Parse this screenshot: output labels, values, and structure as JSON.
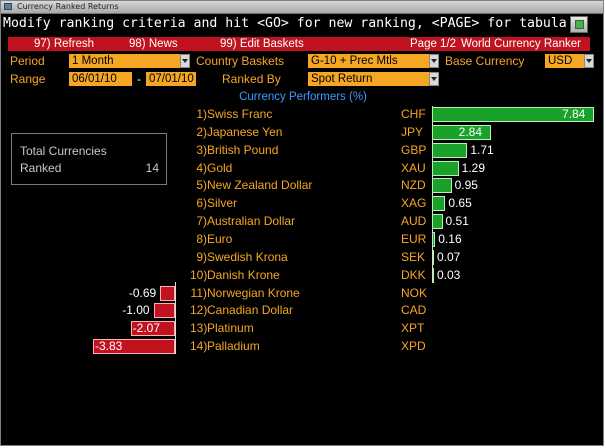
{
  "window": {
    "title": "Currency Ranked Returns"
  },
  "command_line": "Modify ranking criteria and hit <GO> for new ranking, <PAGE> for tabular data",
  "menu": {
    "refresh": "97) Refresh",
    "news": "98) News",
    "edit_baskets": "99) Edit Baskets",
    "page": "Page 1/2",
    "title": "World Currency Ranker"
  },
  "controls": {
    "period_label": "Period",
    "period_value": "1 Month",
    "country_baskets_label": "Country Baskets",
    "country_baskets_value": "G-10 + Prec Mtls",
    "base_currency_label": "Base Currency",
    "base_currency_value": "USD",
    "range_label": "Range",
    "range_start": "06/01/10",
    "range_sep": "-",
    "range_end": "07/01/10",
    "ranked_by_label": "Ranked By",
    "ranked_by_value": "Spot Return"
  },
  "section_title": "Currency Performers (%)",
  "summary": {
    "line1": "Total Currencies",
    "line2": "Ranked",
    "count": "14"
  },
  "colors": {
    "positive": "#1aa12a",
    "negative": "#c1121f",
    "label": "#f5a623",
    "title": "#3a9cff"
  },
  "chart_data": {
    "type": "bar",
    "orientation": "horizontal",
    "title": "Currency Performers (%)",
    "categories": [
      "Swiss Franc",
      "Japanese Yen",
      "British Pound",
      "Gold",
      "New Zealand Dollar",
      "Silver",
      "Australian Dollar",
      "Euro",
      "Swedish Krona",
      "Danish Krone",
      "Norwegian Krone",
      "Canadian Dollar",
      "Platinum",
      "Palladium"
    ],
    "ranks": [
      "1)",
      "2)",
      "3)",
      "4)",
      "5)",
      "6)",
      "7)",
      "8)",
      "9)",
      "10)",
      "11)",
      "12)",
      "13)",
      "14)"
    ],
    "codes": [
      "CHF",
      "JPY",
      "GBP",
      "XAU",
      "NZD",
      "XAG",
      "AUD",
      "EUR",
      "SEK",
      "DKK",
      "NOK",
      "CAD",
      "XPT",
      "XPD"
    ],
    "values": [
      7.84,
      2.84,
      1.71,
      1.29,
      0.95,
      0.65,
      0.51,
      0.16,
      0.07,
      0.03,
      -0.69,
      -1.0,
      -2.07,
      -3.83
    ],
    "labels": [
      "7.84",
      "2.84",
      "1.71",
      "1.29",
      "0.95",
      "0.65",
      "0.51",
      "0.16",
      "0.07",
      "0.03",
      "-0.69",
      "-1.00",
      "-2.07",
      "-3.83"
    ]
  }
}
